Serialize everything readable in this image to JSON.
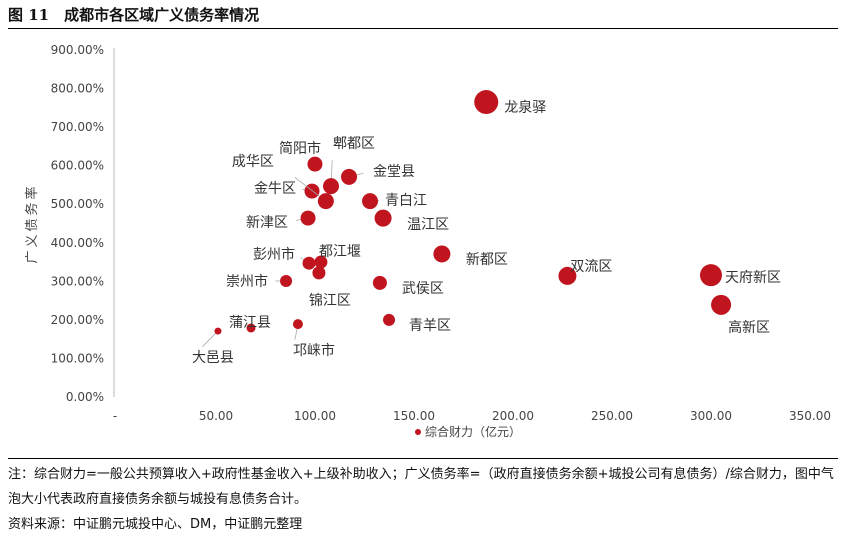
{
  "title": "图 11　成都市各区域广义债务率情况",
  "chart_data": {
    "type": "bubble",
    "title": "",
    "xlabel": "综合财力（亿元）",
    "ylabel": "广义债务率",
    "xlim": [
      0,
      350
    ],
    "ylim": [
      0,
      900
    ],
    "x_ticks": [
      "-",
      "50.00",
      "100.00",
      "150.00",
      "200.00",
      "250.00",
      "300.00",
      "350.00"
    ],
    "y_ticks": [
      "0.00%",
      "100.00%",
      "200.00%",
      "300.00%",
      "400.00%",
      "500.00%",
      "600.00%",
      "700.00%",
      "800.00%",
      "900.00%"
    ],
    "legend": {
      "label": "综合财力（亿元）",
      "position": "bottom"
    },
    "bubble_color": "#C0141F",
    "points": [
      {
        "name": "龙泉驿",
        "x": 188,
        "y": 765,
        "size": 12
      },
      {
        "name": "天府新区",
        "x": 301.5,
        "y": 316,
        "size": 11
      },
      {
        "name": "高新区",
        "x": 306.6,
        "y": 239,
        "size": 10
      },
      {
        "name": "双流区",
        "x": 229,
        "y": 314,
        "size": 9
      },
      {
        "name": "新都区",
        "x": 165.6,
        "y": 371,
        "size": 8.5
      },
      {
        "name": "温江区",
        "x": 135.9,
        "y": 464,
        "size": 8.5
      },
      {
        "name": "青白江",
        "x": 129.3,
        "y": 508,
        "size": 8
      },
      {
        "name": "金堂县",
        "x": 118.7,
        "y": 571,
        "size": 8
      },
      {
        "name": "郫都区",
        "x": 109.6,
        "y": 547,
        "size": 8
      },
      {
        "name": "简阳市",
        "x": 101.5,
        "y": 604,
        "size": 7.5
      },
      {
        "name": "金牛区",
        "x": 100,
        "y": 534,
        "size": 7.5
      },
      {
        "name": "成华区",
        "x": 107,
        "y": 508,
        "size": 8
      },
      {
        "name": "新津区",
        "x": 98,
        "y": 464,
        "size": 7.5
      },
      {
        "name": "都江堰",
        "x": 104.5,
        "y": 350,
        "size": 6.5
      },
      {
        "name": "彭州市",
        "x": 98.5,
        "y": 347,
        "size": 6.5
      },
      {
        "name": "锦江区",
        "x": 103.5,
        "y": 322,
        "size": 6.5
      },
      {
        "name": "崇州市",
        "x": 86.9,
        "y": 301,
        "size": 6
      },
      {
        "name": "武侯区",
        "x": 134.3,
        "y": 296,
        "size": 7
      },
      {
        "name": "青羊区",
        "x": 138.9,
        "y": 200,
        "size": 6
      },
      {
        "name": "蒲江县",
        "x": 69.2,
        "y": 179,
        "size": 4.5
      },
      {
        "name": "邛崃市",
        "x": 92.9,
        "y": 189,
        "size": 5
      },
      {
        "name": "大邑县",
        "x": 52.5,
        "y": 171,
        "size": 3.5
      }
    ]
  },
  "notes": [
    "注：综合财力=一般公共预算收入+政府性基金收入+上级补助收入；广义债务率=（政府直接债务余额+城投公司有息债务）/综合财力，图中气泡大小代表政府直接债务余额与城投有息债务合计。",
    "资料来源：中证鹏元城投中心、DM，中证鹏元整理"
  ]
}
